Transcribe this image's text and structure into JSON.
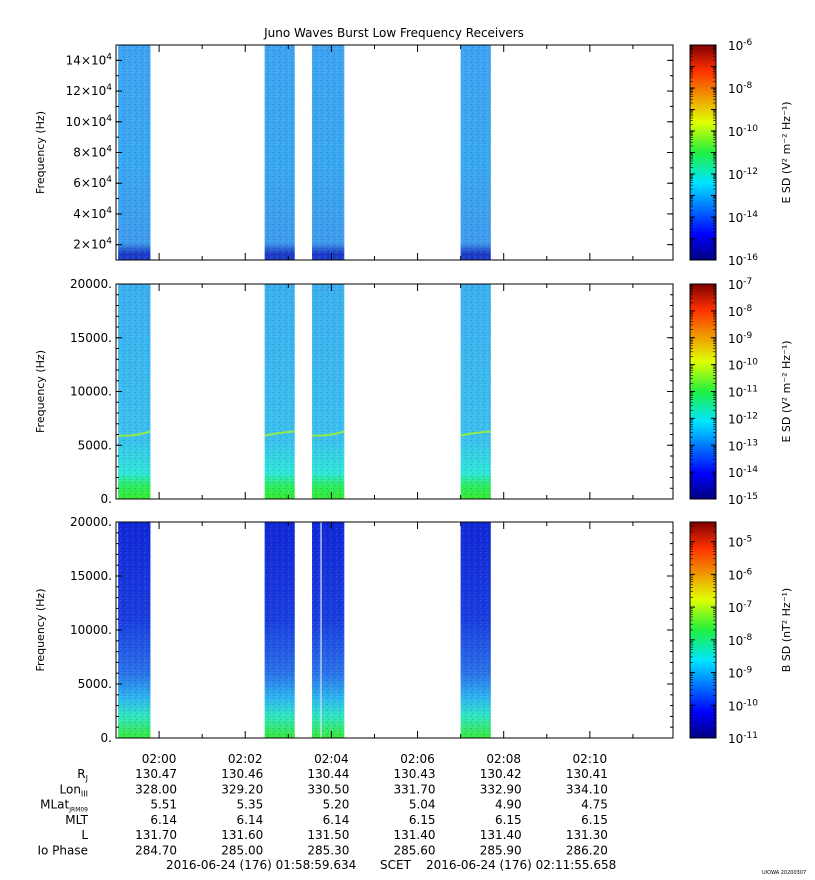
{
  "title": "Juno Waves Burst Low Frequency Receivers",
  "credit": "UIOWA 20200307",
  "time_axis": {
    "tick_labels": [
      "02:00",
      "02:02",
      "02:04",
      "02:06",
      "02:08",
      "02:10"
    ],
    "start_label": "2016-06-24 (176) 01:58:59.634",
    "scet_label": "SCET",
    "end_label": "2016-06-24 (176) 02:11:55.658"
  },
  "ephemeris": {
    "rows": [
      {
        "label": "R",
        "sub": "J",
        "values": [
          "130.47",
          "130.46",
          "130.44",
          "130.43",
          "130.42",
          "130.41"
        ]
      },
      {
        "label": "Lon",
        "sub": "III",
        "values": [
          "328.00",
          "329.20",
          "330.50",
          "331.70",
          "332.90",
          "334.10"
        ]
      },
      {
        "label": "MLat",
        "sub": "JRM09",
        "values": [
          "5.51",
          "5.35",
          "5.20",
          "5.04",
          "4.90",
          "4.75"
        ]
      },
      {
        "label": "MLT",
        "sub": "",
        "values": [
          "6.14",
          "6.14",
          "6.14",
          "6.15",
          "6.15",
          "6.15"
        ]
      },
      {
        "label": "L",
        "sub": "",
        "values": [
          "131.70",
          "131.60",
          "131.50",
          "131.40",
          "131.40",
          "131.30"
        ]
      },
      {
        "label": "Io Phase",
        "sub": "",
        "values": [
          "284.70",
          "285.00",
          "285.30",
          "285.60",
          "285.90",
          "286.20"
        ]
      }
    ]
  },
  "chart_data": [
    {
      "type": "heatmap",
      "panel": 1,
      "ylabel": "Frequency (Hz)",
      "yticks": [
        {
          "value": 20000,
          "mant": "2×10",
          "exp": "4"
        },
        {
          "value": 40000,
          "mant": "4×10",
          "exp": "4"
        },
        {
          "value": 60000,
          "mant": "6×10",
          "exp": "4"
        },
        {
          "value": 80000,
          "mant": "8×10",
          "exp": "4"
        },
        {
          "value": 100000,
          "mant": "10×10",
          "exp": "4"
        },
        {
          "value": 120000,
          "mant": "12×10",
          "exp": "4"
        },
        {
          "value": 140000,
          "mant": "14×10",
          "exp": "4"
        }
      ],
      "ylim": [
        10000,
        150000
      ],
      "xlim_minutes": [
        -1.0,
        11.93
      ],
      "bursts_minutes": [
        [
          -0.95,
          -0.2
        ],
        [
          2.45,
          3.15
        ],
        [
          3.55,
          4.3
        ],
        [
          7.0,
          7.7
        ]
      ],
      "colorbar": {
        "label": "E SD (V² m⁻² Hz⁻¹)",
        "log_min": -16,
        "log_max": -6,
        "tick_exps": [
          "-6",
          "-8",
          "-10",
          "-12",
          "-14",
          "-16"
        ]
      },
      "colors": {
        "background": "#3aa0f0",
        "low_band": "#1e3cc8"
      }
    },
    {
      "type": "heatmap",
      "panel": 2,
      "ylabel": "Frequency (Hz)",
      "yticks": [
        {
          "value": 0,
          "label": "0."
        },
        {
          "value": 5000,
          "label": "5000."
        },
        {
          "value": 10000,
          "label": "10000."
        },
        {
          "value": 15000,
          "label": "15000."
        },
        {
          "value": 20000,
          "label": "20000."
        }
      ],
      "ylim": [
        0,
        20000
      ],
      "xlim_minutes": [
        -1.0,
        11.93
      ],
      "bursts_minutes": [
        [
          -0.95,
          -0.2
        ],
        [
          2.45,
          3.15
        ],
        [
          3.55,
          4.3
        ],
        [
          7.0,
          7.7
        ]
      ],
      "features": [
        {
          "type": "emission_line",
          "frequency_hz": 6000
        }
      ],
      "colorbar": {
        "label": "E SD (V² m⁻² Hz⁻¹)",
        "log_min": -15,
        "log_max": -7,
        "tick_exps": [
          "-7",
          "-8",
          "-9",
          "-10",
          "-11",
          "-12",
          "-13",
          "-14",
          "-15"
        ]
      },
      "colors": {
        "background": "#41b8ee",
        "low_band": "#2ee63a",
        "line": "#9af03c"
      }
    },
    {
      "type": "heatmap",
      "panel": 3,
      "ylabel": "Frequency (Hz)",
      "yticks": [
        {
          "value": 0,
          "label": "0."
        },
        {
          "value": 5000,
          "label": "5000."
        },
        {
          "value": 10000,
          "label": "10000."
        },
        {
          "value": 15000,
          "label": "15000."
        },
        {
          "value": 20000,
          "label": "20000."
        }
      ],
      "ylim": [
        0,
        20000
      ],
      "xlim_minutes": [
        -1.0,
        11.93
      ],
      "bursts_minutes": [
        [
          -0.95,
          -0.2
        ],
        [
          2.45,
          3.15
        ],
        [
          3.55,
          4.3
        ],
        [
          7.0,
          7.7
        ]
      ],
      "colorbar": {
        "label": "B SD (nT² Hz⁻¹)",
        "log_min": -11,
        "log_max": -4.4,
        "tick_exps": [
          "-5",
          "-6",
          "-7",
          "-8",
          "-9",
          "-10",
          "-11"
        ]
      },
      "colors": {
        "background": "#1432d8",
        "low_band": "#36e850"
      }
    }
  ]
}
